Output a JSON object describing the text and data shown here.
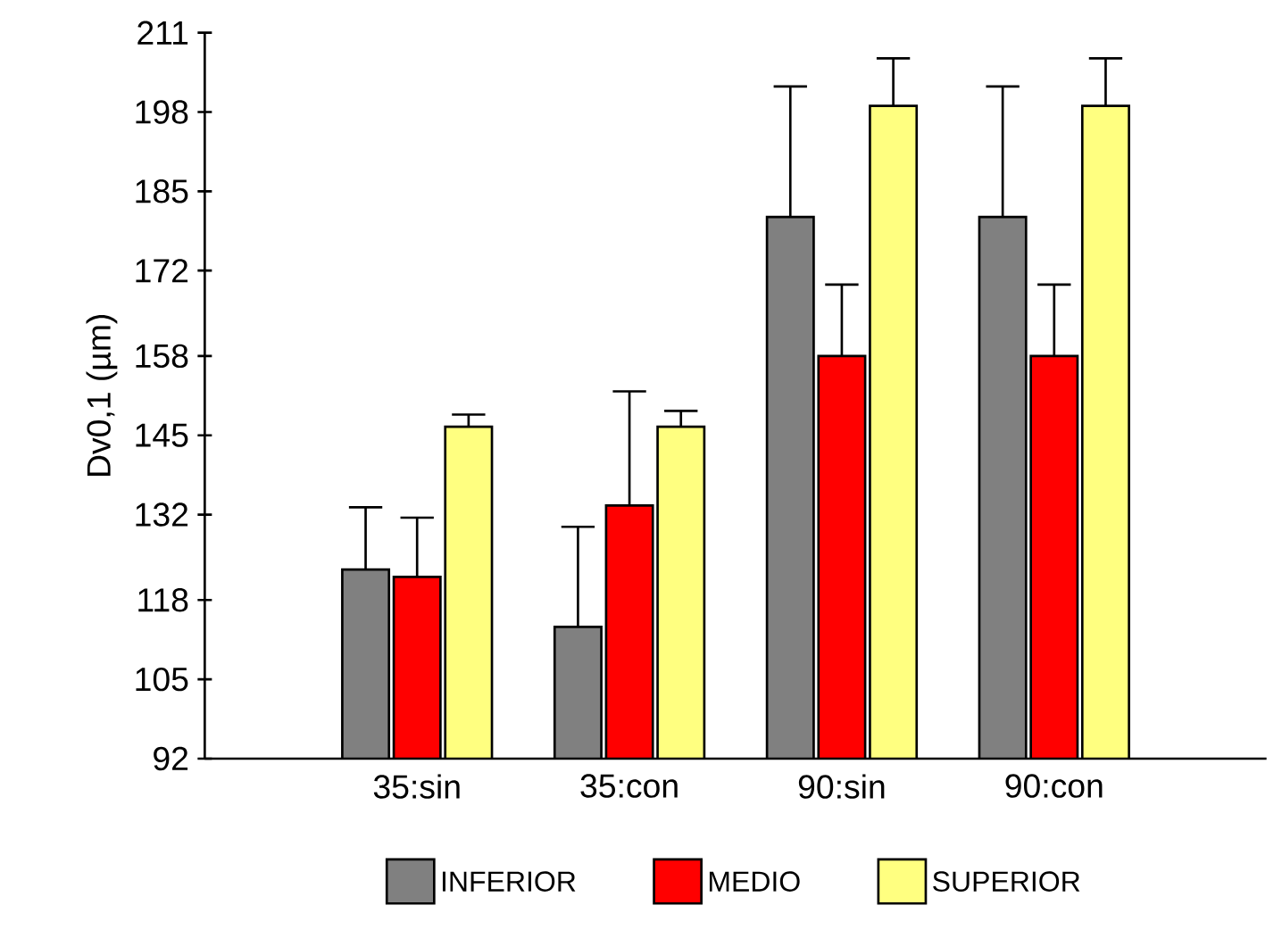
{
  "chart_data": {
    "type": "bar",
    "ylabel": "Dv0,1 (µm)",
    "categories": [
      "35:sin",
      "35:con",
      "90:sin",
      "90:con"
    ],
    "series": [
      {
        "name": "INFERIOR",
        "color": "#808080",
        "values": [
          123,
          113.6,
          180.8,
          180.8
        ],
        "errors": [
          10.2,
          16.4,
          21.4,
          21.4
        ]
      },
      {
        "name": "MEDIO",
        "color": "#ff0000",
        "values": [
          121.8,
          133.5,
          158,
          158
        ],
        "errors": [
          9.7,
          18.7,
          11.7,
          11.7
        ]
      },
      {
        "name": "SUPERIOR",
        "color": "#ffff80",
        "values": [
          146.4,
          146.4,
          199,
          199
        ],
        "errors": [
          2,
          2.6,
          7.8,
          7.8
        ]
      }
    ],
    "ylim": [
      92,
      211
    ],
    "yticks": [
      92,
      105,
      118,
      132,
      145,
      158,
      172,
      185,
      198,
      211
    ],
    "grid": false,
    "legend": "bottom"
  }
}
